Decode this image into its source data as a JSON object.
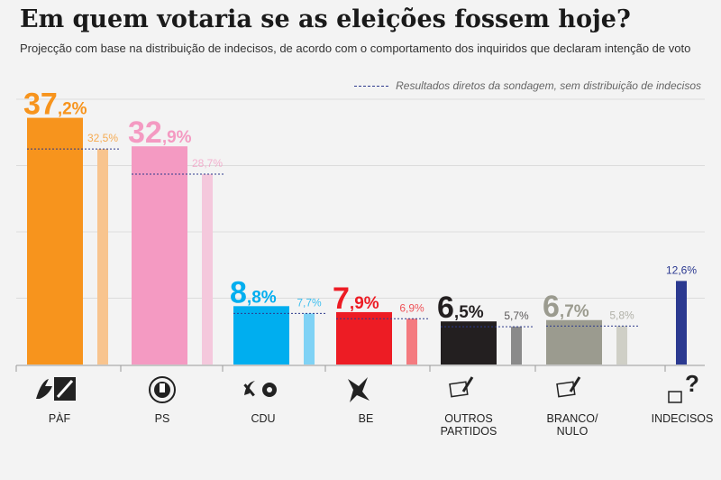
{
  "title": "Em quem votaria se as eleições fossem hoje?",
  "subtitle": "Projecção com base na distribuição de indecisos, de acordo com o comportamento dos inquiridos que declaram intenção de voto",
  "legend": "Resultados diretos da sondagem, sem distribuição de indecisos",
  "chart_data": {
    "type": "bar",
    "ylim": [
      0,
      40
    ],
    "grid": true,
    "categories": [
      "PàF",
      "PS",
      "CDU",
      "BE",
      "OUTROS PARTIDOS",
      "BRANCO/ NULO",
      "INDECISOS"
    ],
    "series": [
      {
        "values": [
          37.2,
          32.9,
          8.8,
          7.9,
          6.5,
          6.7,
          null
        ],
        "labels": [
          "37,2%",
          "32,9%",
          "8,8%",
          "7,9%",
          "6,5%",
          "6,7%",
          ""
        ]
      },
      {
        "name": "Resultados diretos da sondagem, sem distribuição de indecisos",
        "values": [
          32.5,
          28.7,
          7.7,
          6.9,
          5.7,
          5.8,
          12.6
        ],
        "labels": [
          "32,5%",
          "28,7%",
          "7,7%",
          "6,9%",
          "5,7%",
          "5,8%",
          "12,6%"
        ]
      }
    ],
    "colors": {
      "main": [
        "#f7941d",
        "#f49ac2",
        "#00aeef",
        "#ed1c24",
        "#231f20",
        "#9b9b8f",
        null
      ],
      "direct": [
        "#f8c48e",
        "#f4c8dc",
        "#7fd2f5",
        "#f47a7f",
        "#8a8a8a",
        "#cfcfc6",
        "#2b3990"
      ],
      "label": [
        "#f7941d",
        "#f49ac2",
        "#00aeef",
        "#ed1c24",
        "#231f20",
        "#9b9b8f",
        "#2b3990"
      ],
      "direct_label": [
        "#f7941d",
        "#f49ac2",
        "#00aeef",
        "#ed1c24",
        "#231f20",
        "#9b9b8f",
        "#2b3990"
      ],
      "dashed_line": "#2d3a8c"
    }
  },
  "parties": [
    {
      "label": "PàF",
      "icon": "paf-logo-icon"
    },
    {
      "label": "PS",
      "icon": "ps-logo-icon"
    },
    {
      "label": "CDU",
      "icon": "cdu-hammer-sickle-icon"
    },
    {
      "label": "BE",
      "icon": "be-star-icon"
    },
    {
      "label": "OUTROS\nPARTIDOS",
      "icon": "ballot-icon"
    },
    {
      "label": "BRANCO/\nNULO",
      "icon": "ballot-blank-icon"
    },
    {
      "label": "INDECISOS",
      "icon": "question-ballot-icon"
    }
  ]
}
